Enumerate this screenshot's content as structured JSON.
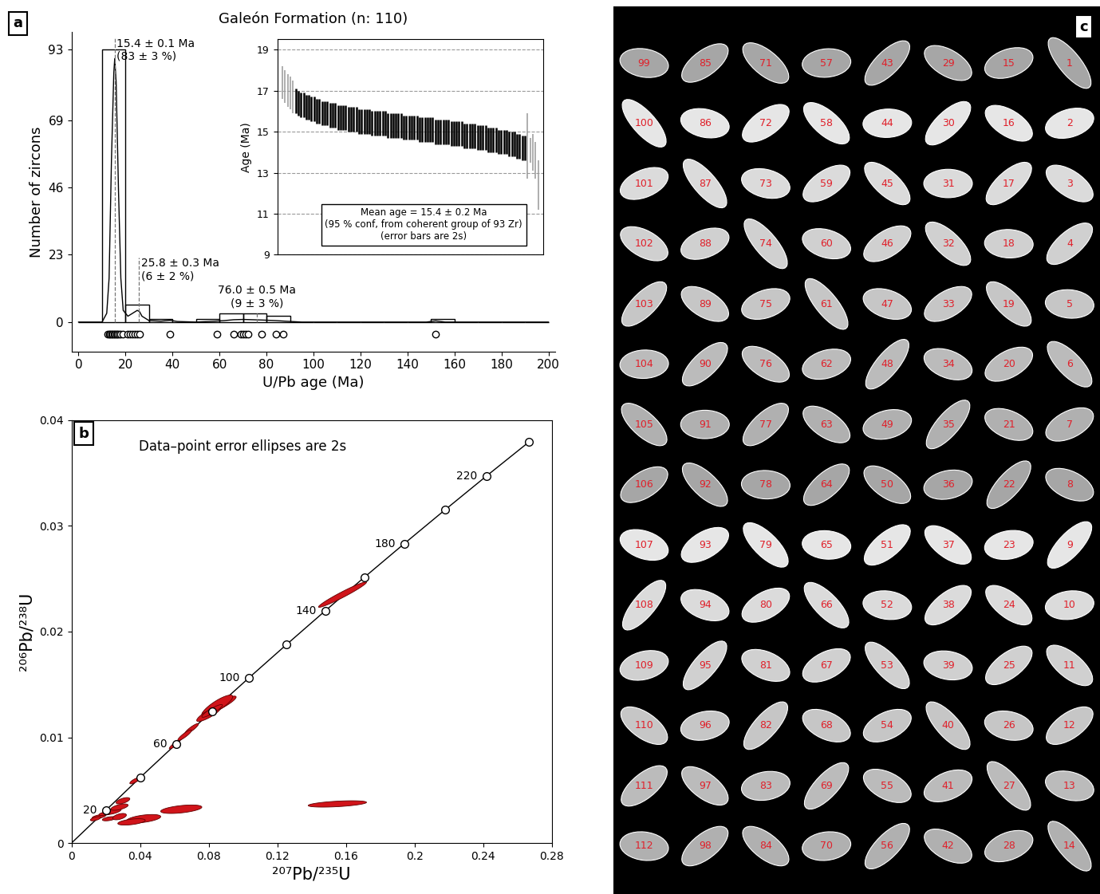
{
  "chart_data": [
    {
      "panel": "a",
      "type": "histogram",
      "title": "Galeón Formation (n: 110)",
      "xlabel": "U/Pb age (Ma)",
      "ylabel": "Number of zircons",
      "bins": [
        0,
        10,
        20,
        30,
        40,
        50,
        60,
        70,
        80,
        90,
        100,
        110,
        120,
        130,
        140,
        150,
        160,
        170,
        180,
        190,
        200
      ],
      "counts": [
        0,
        93,
        6,
        1,
        0,
        1,
        3,
        3,
        2,
        0,
        0,
        0,
        0,
        0,
        0,
        1,
        0,
        0,
        0,
        0
      ],
      "color": "#000000",
      "density_curve": {
        "x": [
          0,
          10,
          12,
          13,
          14,
          15,
          15.4,
          16,
          17,
          18,
          19,
          21,
          23,
          25,
          26,
          27,
          30,
          35,
          39,
          42,
          50,
          58,
          62,
          66,
          70,
          74,
          78,
          84,
          88,
          95,
          110,
          148,
          152,
          156,
          170,
          200
        ],
        "values": [
          0,
          0,
          3,
          15,
          55,
          85,
          90,
          82,
          45,
          15,
          4,
          2,
          3,
          4,
          3.5,
          2,
          0.5,
          0.3,
          0.6,
          0.2,
          0,
          0.3,
          0.5,
          0.8,
          0.9,
          0.8,
          0.7,
          0.5,
          0.3,
          0,
          0,
          0,
          0.4,
          0,
          0,
          0
        ]
      },
      "ages": [
        12.5,
        13,
        13.5,
        14,
        14.5,
        15,
        15.5,
        16,
        16.5,
        17,
        18,
        19,
        21,
        22,
        23,
        24,
        25,
        26,
        39,
        59,
        66,
        69,
        70,
        71,
        72,
        78,
        84,
        87,
        152
      ],
      "annotations": [
        {
          "x": 15.4,
          "text": "15.4 ± 0.1 Ma\n(83 ± 3 %)"
        },
        {
          "x": 25.8,
          "text": "25.8 ± 0.3 Ma\n(6 ± 2 %)"
        },
        {
          "x": 76.0,
          "text": "76.0 ± 0.5 Ma\n(9 ± 3 %)"
        }
      ],
      "xlim": [
        -3,
        203
      ],
      "ylim": [
        -10,
        99
      ],
      "xticks": [
        0,
        20,
        40,
        60,
        80,
        100,
        120,
        140,
        160,
        180,
        200
      ],
      "yticks": [
        0,
        23,
        46,
        69,
        93
      ]
    },
    {
      "type": "errorbar",
      "ylabel": "Age (Ma)",
      "series": [
        {
          "color": "#999999",
          "x": [
            0,
            1,
            2,
            3,
            4
          ],
          "values": [
            17.4,
            17.2,
            17.0,
            16.9,
            16.7
          ],
          "error": 0.8
        },
        {
          "color": "#000000",
          "x": [
            5,
            6,
            7,
            8,
            9,
            10,
            11,
            12,
            13,
            14,
            15,
            16,
            17,
            18,
            19,
            20,
            21,
            22,
            23,
            24,
            25,
            26,
            27,
            28,
            29,
            30,
            31,
            32,
            33,
            34,
            35,
            36,
            37,
            38,
            39,
            40,
            41,
            42,
            43,
            44,
            45,
            46,
            47,
            48,
            49,
            50,
            51,
            52,
            53,
            54,
            55,
            56,
            57,
            58,
            59,
            60,
            61,
            62,
            63,
            64,
            65,
            66,
            67,
            68,
            69,
            70,
            71,
            72,
            73,
            74,
            75,
            76,
            77,
            78,
            79,
            80,
            81,
            82,
            83,
            84,
            85,
            86,
            87,
            88,
            89,
            90,
            91,
            92
          ],
          "values": [
            16.5,
            16.4,
            16.3,
            16.3,
            16.2,
            16.2,
            16.1,
            16.1,
            16.0,
            16.0,
            15.9,
            15.9,
            15.9,
            15.8,
            15.8,
            15.8,
            15.7,
            15.7,
            15.7,
            15.7,
            15.6,
            15.6,
            15.6,
            15.6,
            15.5,
            15.5,
            15.5,
            15.5,
            15.5,
            15.4,
            15.4,
            15.4,
            15.4,
            15.4,
            15.4,
            15.3,
            15.3,
            15.3,
            15.3,
            15.3,
            15.3,
            15.2,
            15.2,
            15.2,
            15.2,
            15.2,
            15.2,
            15.1,
            15.1,
            15.1,
            15.1,
            15.1,
            15.1,
            15.0,
            15.0,
            15.0,
            15.0,
            15.0,
            15.0,
            14.9,
            14.9,
            14.9,
            14.9,
            14.9,
            14.8,
            14.8,
            14.8,
            14.8,
            14.8,
            14.7,
            14.7,
            14.7,
            14.7,
            14.6,
            14.6,
            14.6,
            14.6,
            14.5,
            14.5,
            14.5,
            14.5,
            14.4,
            14.4,
            14.4,
            14.3,
            14.3,
            14.2,
            14.2
          ],
          "error": 0.6
        },
        {
          "color": "#999999",
          "x": [
            93,
            94,
            95,
            96,
            97
          ],
          "values": [
            14.3,
            14.1,
            14.0,
            13.6,
            12.4
          ],
          "error": [
            1.6,
            0.6,
            0.9,
            0.9,
            1.2
          ]
        }
      ],
      "annotation": "Mean age = 15.4 ± 0.2 Ma\n(95 % conf, from coherent group of 93 Zr)\n(error bars are 2s)",
      "xlim": [
        -2,
        99
      ],
      "ylim": [
        9,
        19.5
      ],
      "yticks": [
        9,
        11,
        13,
        15,
        17,
        19
      ],
      "grid": true,
      "tick_labels": "y"
    },
    {
      "panel": "b",
      "type": "concordia",
      "xlabel": "²⁰⁷Pb/²³⁵U",
      "ylabel": "²⁰⁶Pb/²³⁸U",
      "annotation": "Data–point error ellipses are 2s",
      "color": "#d0141a",
      "concordia": {
        "x": [
          0,
          0.0201,
          0.04018,
          0.06087,
          0.08197,
          0.1035,
          0.12545,
          0.14784,
          0.17068,
          0.19397,
          0.21772,
          0.24192,
          0.26665
        ],
        "y": [
          0,
          0.003107,
          0.006224,
          0.009351,
          0.012487,
          0.015633,
          0.018789,
          0.021955,
          0.025131,
          0.028316,
          0.031511,
          0.034717,
          0.037932
        ],
        "ages": [
          null,
          20,
          40,
          60,
          80,
          100,
          120,
          140,
          160,
          180,
          200,
          220,
          240
        ],
        "labeled": [
          20,
          60,
          100,
          140,
          180,
          220
        ]
      },
      "ellipses": [
        {
          "x": 0.158,
          "y": 0.0235,
          "sx": 0.014,
          "sy": 0.0012,
          "rho": 0.97
        },
        {
          "x": 0.086,
          "y": 0.013,
          "sx": 0.01,
          "sy": 0.0009,
          "rho": 0.9
        },
        {
          "x": 0.085,
          "y": 0.013,
          "sx": 0.009,
          "sy": 0.001,
          "rho": 0.85
        },
        {
          "x": 0.08,
          "y": 0.0122,
          "sx": 0.007,
          "sy": 0.0007,
          "rho": 0.85
        },
        {
          "x": 0.082,
          "y": 0.0125,
          "sx": 0.006,
          "sy": 0.0006,
          "rho": 0.9
        },
        {
          "x": 0.07,
          "y": 0.0108,
          "sx": 0.004,
          "sy": 0.0005,
          "rho": 0.9
        },
        {
          "x": 0.066,
          "y": 0.0102,
          "sx": 0.004,
          "sy": 0.0005,
          "rho": 0.9
        },
        {
          "x": 0.06,
          "y": 0.0093,
          "sx": 0.003,
          "sy": 0.0004,
          "rho": 0.9
        },
        {
          "x": 0.037,
          "y": 0.0059,
          "sx": 0.003,
          "sy": 0.0003,
          "rho": 0.8
        },
        {
          "x": 0.016,
          "y": 0.0025,
          "sx": 0.004,
          "sy": 0.0002,
          "rho": 0.6
        },
        {
          "x": 0.02,
          "y": 0.0028,
          "sx": 0.004,
          "sy": 0.0002,
          "rho": 0.6
        },
        {
          "x": 0.024,
          "y": 0.003,
          "sx": 0.005,
          "sy": 0.0003,
          "rho": 0.6
        },
        {
          "x": 0.028,
          "y": 0.0034,
          "sx": 0.005,
          "sy": 0.0003,
          "rho": 0.6
        },
        {
          "x": 0.03,
          "y": 0.004,
          "sx": 0.004,
          "sy": 0.0003,
          "rho": 0.6
        },
        {
          "x": 0.014,
          "y": 0.0023,
          "sx": 0.003,
          "sy": 0.0002,
          "rho": 0.6
        },
        {
          "x": 0.022,
          "y": 0.0023,
          "sx": 0.004,
          "sy": 0.0002,
          "rho": 0.5
        },
        {
          "x": 0.042,
          "y": 0.0023,
          "sx": 0.01,
          "sy": 0.0004,
          "rho": 0.5
        },
        {
          "x": 0.035,
          "y": 0.002,
          "sx": 0.008,
          "sy": 0.0003,
          "rho": 0.5
        },
        {
          "x": 0.064,
          "y": 0.0032,
          "sx": 0.012,
          "sy": 0.0004,
          "rho": 0.5
        },
        {
          "x": 0.155,
          "y": 0.0037,
          "sx": 0.017,
          "sy": 0.0003,
          "rho": 0.5
        },
        {
          "x": 0.028,
          "y": 0.0025,
          "sx": 0.004,
          "sy": 0.0003,
          "rho": 0.5
        }
      ],
      "xlim": [
        0,
        0.28
      ],
      "ylim": [
        0,
        0.04
      ],
      "xticks": [
        0,
        0.04,
        0.08,
        0.12,
        0.16,
        0.2,
        0.24,
        0.28
      ],
      "yticks": [
        0,
        0.01,
        0.02,
        0.03,
        0.04
      ]
    }
  ],
  "image": {
    "panel": "c",
    "label_color": "#e0202a",
    "labels": [
      1,
      2,
      3,
      4,
      5,
      6,
      7,
      8,
      9,
      10,
      11,
      12,
      13,
      14,
      15,
      16,
      17,
      18,
      19,
      20,
      21,
      22,
      23,
      24,
      25,
      26,
      27,
      28,
      29,
      30,
      31,
      32,
      33,
      34,
      35,
      36,
      37,
      38,
      39,
      40,
      41,
      42,
      43,
      44,
      45,
      46,
      47,
      48,
      49,
      50,
      51,
      52,
      53,
      54,
      55,
      56,
      57,
      58,
      59,
      60,
      61,
      62,
      63,
      64,
      65,
      66,
      67,
      68,
      69,
      70,
      71,
      72,
      73,
      74,
      75,
      76,
      77,
      78,
      79,
      80,
      81,
      82,
      83,
      84,
      85,
      86,
      87,
      88,
      89,
      90,
      91,
      92,
      93,
      94,
      95,
      96,
      97,
      98,
      99,
      100,
      101,
      102,
      103,
      104,
      105,
      106,
      107,
      108,
      109,
      110,
      111,
      112
    ]
  }
}
